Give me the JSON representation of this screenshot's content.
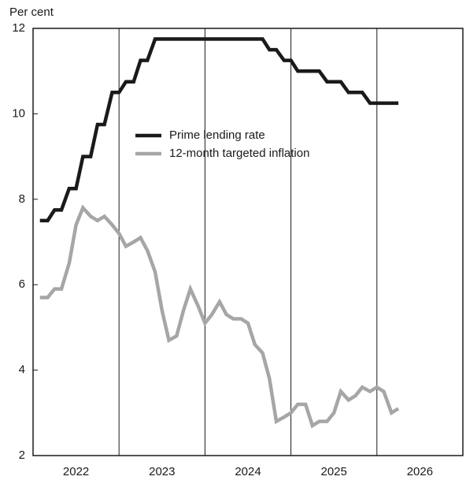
{
  "chart_data": {
    "type": "line",
    "ylabel": "Per cent",
    "x": [
      2022.08,
      2022.17,
      2022.25,
      2022.33,
      2022.42,
      2022.5,
      2022.58,
      2022.67,
      2022.75,
      2022.83,
      2022.92,
      2023.0,
      2023.08,
      2023.17,
      2023.25,
      2023.33,
      2023.42,
      2023.5,
      2023.58,
      2023.67,
      2023.75,
      2023.83,
      2023.92,
      2024.0,
      2024.08,
      2024.17,
      2024.25,
      2024.33,
      2024.42,
      2024.5,
      2024.58,
      2024.67,
      2024.75,
      2024.83,
      2024.92,
      2025.0,
      2025.08,
      2025.17,
      2025.25,
      2025.33,
      2025.42,
      2025.5,
      2025.58,
      2025.67,
      2025.75,
      2025.83,
      2025.92,
      2026.0,
      2026.08,
      2026.17,
      2026.25
    ],
    "series": [
      {
        "name": "Prime lending rate",
        "color": "#1a1a1a",
        "values": [
          7.5,
          7.5,
          7.75,
          7.75,
          8.25,
          8.25,
          9.0,
          9.0,
          9.75,
          9.75,
          10.5,
          10.5,
          10.75,
          10.75,
          11.25,
          11.25,
          11.75,
          11.75,
          11.75,
          11.75,
          11.75,
          11.75,
          11.75,
          11.75,
          11.75,
          11.75,
          11.75,
          11.75,
          11.75,
          11.75,
          11.75,
          11.75,
          11.5,
          11.5,
          11.25,
          11.25,
          11.0,
          11.0,
          11.0,
          11.0,
          10.75,
          10.75,
          10.75,
          10.5,
          10.5,
          10.5,
          10.25,
          10.25,
          10.25,
          10.25,
          10.25
        ]
      },
      {
        "name": "12-month targeted inflation",
        "color": "#a6a6a6",
        "values": [
          5.7,
          5.7,
          5.9,
          5.9,
          6.5,
          7.4,
          7.8,
          7.6,
          7.5,
          7.6,
          7.4,
          7.2,
          6.9,
          7.0,
          7.1,
          6.8,
          6.3,
          5.4,
          4.7,
          4.8,
          5.4,
          5.9,
          5.5,
          5.1,
          5.3,
          5.6,
          5.3,
          5.2,
          5.2,
          5.1,
          4.6,
          4.4,
          3.8,
          2.8,
          2.9,
          3.0,
          3.2,
          3.2,
          2.7,
          2.8,
          2.8,
          3.0,
          3.5,
          3.3,
          3.4,
          3.6,
          3.5,
          3.6,
          3.5,
          3.0,
          3.1
        ]
      }
    ],
    "xlim": [
      2022,
      2027
    ],
    "xticks": [
      2022,
      2023,
      2024,
      2025,
      2026
    ],
    "ylim": [
      2,
      12
    ],
    "yticks": [
      2,
      4,
      6,
      8,
      10,
      12
    ],
    "grid": "x"
  }
}
